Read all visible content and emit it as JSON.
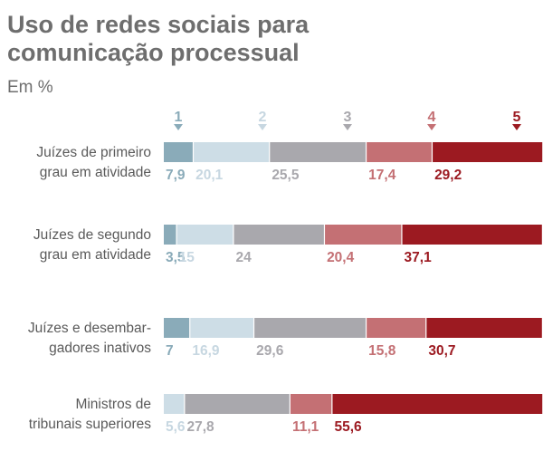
{
  "header": {
    "title_line1": "Uso de redes sociais para",
    "title_line2": "comunicação processual",
    "subtitle": "Em %"
  },
  "colors": {
    "1": "#8aabb9",
    "2": "#cddde6",
    "3": "#a9a8ad",
    "4": "#c47074",
    "5": "#9c1a21",
    "label1": "#8aabb9",
    "label2": "#c7d7e1",
    "label3": "#a9a8ad",
    "label4": "#c47074",
    "label5": "#9c1a21"
  },
  "chart_data": {
    "type": "bar",
    "orientation": "horizontal",
    "stacked": true,
    "title": "Uso de redes sociais para comunicação processual",
    "subtitle": "Em %",
    "legend": [
      "1",
      "2",
      "3",
      "4",
      "5"
    ],
    "legend_position": "top",
    "categories": [
      [
        "Juízes de primeiro",
        "grau em atividade"
      ],
      [
        "Juízes de segundo",
        "grau em atividade"
      ],
      [
        "Juízes e desembar-",
        "gadores inativos"
      ],
      [
        "Ministros de",
        "tribunais superiores"
      ]
    ],
    "series": [
      {
        "name": "1",
        "values": [
          7.9,
          3.5,
          7,
          null
        ]
      },
      {
        "name": "2",
        "values": [
          20.1,
          15,
          16.9,
          5.6
        ]
      },
      {
        "name": "3",
        "values": [
          25.5,
          24,
          29.6,
          27.8
        ]
      },
      {
        "name": "4",
        "values": [
          17.4,
          20.4,
          15.8,
          11.1
        ]
      },
      {
        "name": "5",
        "values": [
          29.2,
          37.1,
          30.7,
          55.6
        ]
      }
    ],
    "value_labels": [
      [
        "7,9",
        "20,1",
        "25,5",
        "17,4",
        "29,2"
      ],
      [
        "3,5",
        "15",
        "24",
        "20,4",
        "37,1"
      ],
      [
        "7",
        "16,9",
        "29,6",
        "15,8",
        "30,7"
      ],
      [
        "",
        "5,6",
        "27,8",
        "11,1",
        "55,6"
      ]
    ],
    "xlim": [
      0,
      100
    ]
  }
}
